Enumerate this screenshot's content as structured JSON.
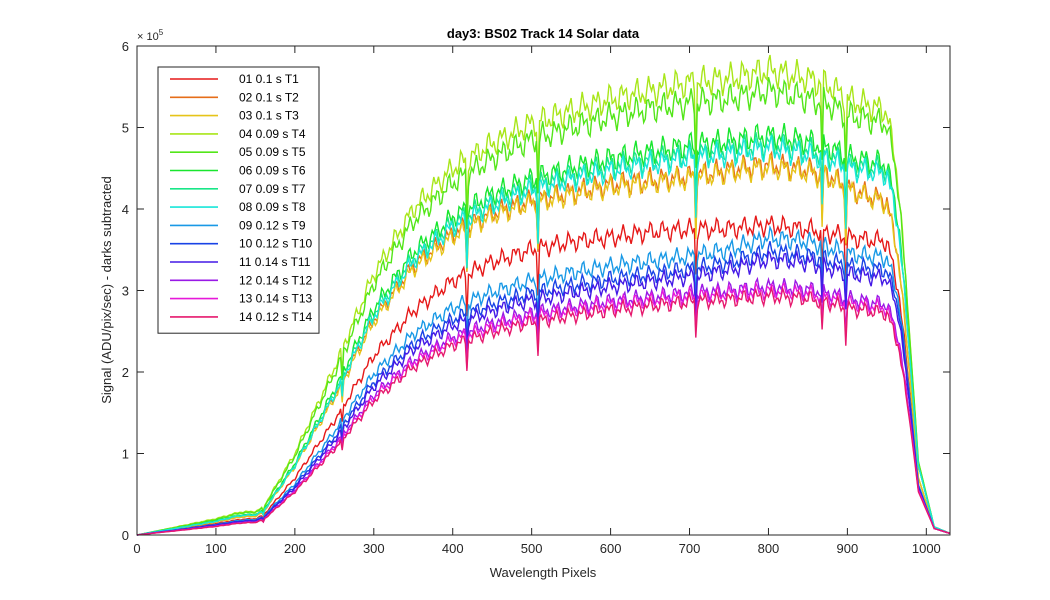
{
  "chart_data": {
    "type": "line",
    "title": "day3: BS02  Track 14 Solar data",
    "xlabel": "Wavelength Pixels",
    "ylabel": "Signal (ADU/pix/sec) - darks subtracted",
    "y_exponent_label": "× 10",
    "y_exponent_power": "5",
    "y_multiplier": 100000,
    "xlim": [
      0,
      1030
    ],
    "ylim": [
      0,
      600000
    ],
    "x_ticks": [
      0,
      100,
      200,
      300,
      400,
      500,
      600,
      700,
      800,
      900,
      1000
    ],
    "x_tick_labels": [
      "0",
      "100",
      "200",
      "300",
      "400",
      "500",
      "600",
      "700",
      "800",
      "900",
      "1000"
    ],
    "y_ticks": [
      0,
      100000,
      200000,
      300000,
      400000,
      500000,
      600000
    ],
    "y_tick_labels": [
      "0",
      "1",
      "2",
      "3",
      "4",
      "5",
      "6"
    ],
    "grid": false,
    "legend_position": "top-left",
    "x": [
      0,
      20,
      50,
      100,
      130,
      150,
      160,
      200,
      250,
      300,
      350,
      400,
      450,
      500,
      550,
      600,
      650,
      700,
      750,
      800,
      850,
      880,
      900,
      950,
      965,
      980,
      990,
      1010,
      1030
    ],
    "series": [
      {
        "name": "01 0.1 s T1",
        "color": "#e61919",
        "values": [
          0,
          3000,
          7000,
          14000,
          19000,
          20000,
          24000,
          70000,
          140000,
          220000,
          275000,
          312000,
          335000,
          350000,
          360000,
          365000,
          372000,
          375000,
          376000,
          380000,
          375000,
          370000,
          365000,
          360000,
          300000,
          165000,
          60000,
          8000,
          2000
        ]
      },
      {
        "name": "02 0.1 s T2",
        "color": "#e66e19",
        "values": [
          0,
          3400,
          8000,
          16000,
          22000,
          23000,
          28000,
          85000,
          170000,
          265000,
          330000,
          370000,
          395000,
          410000,
          420000,
          430000,
          435000,
          440000,
          448000,
          455000,
          448000,
          440000,
          425000,
          410000,
          340000,
          185000,
          70000,
          9000,
          2000
        ]
      },
      {
        "name": "03 0.1 s T3",
        "color": "#e6c419",
        "values": [
          0,
          3400,
          8000,
          16000,
          22000,
          23000,
          28000,
          84000,
          168000,
          262000,
          327000,
          366000,
          392000,
          407000,
          417000,
          427000,
          432000,
          437000,
          445000,
          451000,
          445000,
          437000,
          423000,
          407000,
          338000,
          184000,
          70000,
          9000,
          2000
        ]
      },
      {
        "name": "04 0.09 s T4",
        "color": "#a8e619",
        "values": [
          0,
          4000,
          10000,
          20000,
          28000,
          29000,
          34000,
          100000,
          205000,
          320000,
          400000,
          450000,
          480000,
          505000,
          520000,
          535000,
          545000,
          555000,
          560000,
          570000,
          560000,
          550000,
          535000,
          520000,
          430000,
          230000,
          90000,
          10000,
          2000
        ]
      },
      {
        "name": "05 0.09 s T5",
        "color": "#53e619",
        "values": [
          0,
          3900,
          9500,
          19000,
          27000,
          28000,
          33000,
          97000,
          198000,
          308000,
          385000,
          432000,
          462000,
          485000,
          500000,
          513000,
          523000,
          530000,
          535000,
          545000,
          535000,
          527000,
          515000,
          505000,
          425000,
          228000,
          90000,
          10000,
          2000
        ]
      },
      {
        "name": "06 0.09 s T6",
        "color": "#19e62e",
        "values": [
          0,
          3600,
          8600,
          17500,
          24500,
          25500,
          30000,
          88000,
          178000,
          278000,
          347000,
          390000,
          418000,
          437000,
          450000,
          462000,
          470000,
          478000,
          483000,
          490000,
          483000,
          475000,
          463000,
          455000,
          385000,
          210000,
          85000,
          10000,
          2000
        ]
      },
      {
        "name": "07 0.09 s T7",
        "color": "#19e688",
        "values": [
          0,
          3500,
          8400,
          17000,
          24000,
          25000,
          29500,
          86000,
          174000,
          272000,
          340000,
          382000,
          409000,
          428000,
          441000,
          452000,
          460000,
          467000,
          472000,
          480000,
          472000,
          465000,
          455000,
          448000,
          380000,
          208000,
          85000,
          10000,
          2000
        ]
      },
      {
        "name": "08 0.09 s T8",
        "color": "#19e6d9",
        "values": [
          0,
          3500,
          8300,
          16800,
          23700,
          24700,
          29000,
          85000,
          172000,
          269000,
          336000,
          378000,
          404000,
          423000,
          436000,
          447000,
          455000,
          462000,
          467000,
          475000,
          467000,
          460000,
          450000,
          443000,
          376000,
          206000,
          85000,
          10000,
          2000
        ]
      },
      {
        "name": "09 0.12 s T9",
        "color": "#1999e6",
        "values": [
          0,
          2800,
          6500,
          13000,
          18000,
          19000,
          22500,
          63000,
          127000,
          198000,
          247000,
          279000,
          298000,
          312000,
          322000,
          330000,
          336000,
          342000,
          350000,
          365000,
          360000,
          352000,
          345000,
          340000,
          290000,
          160000,
          62000,
          8000,
          2000
        ]
      },
      {
        "name": "10 0.12 s T10",
        "color": "#1943e6",
        "values": [
          0,
          2600,
          6200,
          12500,
          17000,
          18000,
          21500,
          60000,
          120000,
          188000,
          235000,
          265000,
          283000,
          297000,
          306000,
          314000,
          320000,
          326000,
          334000,
          348000,
          343000,
          336000,
          330000,
          325000,
          280000,
          155000,
          60000,
          8000,
          2000
        ]
      },
      {
        "name": "11 0.14 s T11",
        "color": "#4319e6",
        "values": [
          0,
          2500,
          6000,
          12000,
          16500,
          17500,
          21000,
          58000,
          116000,
          182000,
          228000,
          257000,
          275000,
          288000,
          297000,
          305000,
          311000,
          317000,
          325000,
          338000,
          334000,
          327000,
          320000,
          315000,
          270000,
          150000,
          58000,
          8000,
          2000
        ]
      },
      {
        "name": "12 0.14 s T12",
        "color": "#9919e6",
        "values": [
          0,
          2300,
          5500,
          11000,
          15000,
          16000,
          19000,
          55000,
          110000,
          172000,
          215000,
          243000,
          260000,
          272000,
          280000,
          287000,
          292000,
          297000,
          300000,
          305000,
          302000,
          296000,
          290000,
          283000,
          242000,
          137000,
          55000,
          8000,
          2000
        ]
      },
      {
        "name": "13 0.14 s T13",
        "color": "#e619d9",
        "values": [
          0,
          2300,
          5400,
          10800,
          14800,
          15800,
          18800,
          54000,
          108000,
          169000,
          212000,
          239000,
          256000,
          268000,
          276000,
          283000,
          288000,
          293000,
          296000,
          300000,
          297000,
          291000,
          285000,
          278000,
          238000,
          135000,
          55000,
          8000,
          2000
        ]
      },
      {
        "name": "14 0.12 s T14",
        "color": "#e6196e",
        "values": [
          0,
          2200,
          5200,
          10500,
          14500,
          15500,
          18500,
          53000,
          105000,
          165000,
          206000,
          233000,
          249000,
          261000,
          269000,
          276000,
          281000,
          286000,
          289000,
          293000,
          290000,
          284000,
          278000,
          272000,
          232000,
          132000,
          53000,
          8000,
          2000
        ]
      }
    ]
  }
}
